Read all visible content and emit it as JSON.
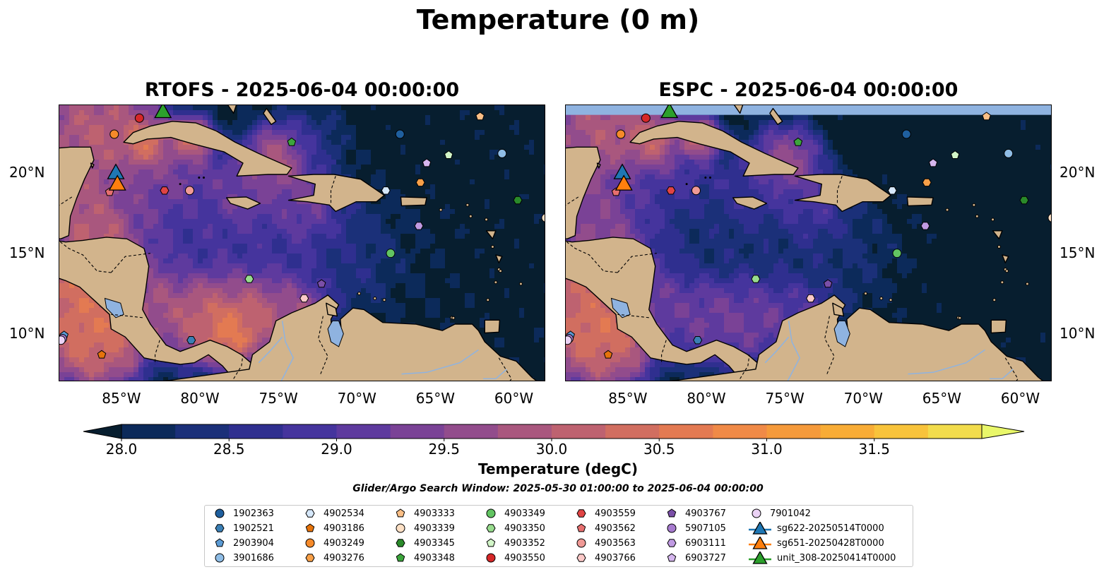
{
  "figure": {
    "title": "Temperature (0 m)",
    "search_window": "Glider/Argo Search Window: 2025-05-30 01:00:00 to 2025-06-04 00:00:00"
  },
  "panels": [
    {
      "title": "RTOFS - 2025-06-04 00:00:00",
      "model": "RTOFS"
    },
    {
      "title": "ESPC - 2025-06-04 00:00:00",
      "model": "ESPC"
    }
  ],
  "map_axes": {
    "lon_range": [
      -89,
      -58
    ],
    "lat_range": [
      7,
      24.2
    ],
    "lon_ticks": [
      "85°W",
      "80°W",
      "75°W",
      "70°W",
      "65°W",
      "60°W"
    ],
    "lat_ticks": [
      "20°N",
      "15°N",
      "10°N"
    ],
    "lon_tick_values": [
      -85,
      -80,
      -75,
      -70,
      -65,
      -60
    ],
    "lat_tick_values": [
      20,
      15,
      10
    ]
  },
  "colorbar": {
    "label": "Temperature (degC)",
    "min": 28.0,
    "max": 31.5,
    "step": 0.25,
    "extend": "both",
    "tick_labels": [
      "28.0",
      "28.5",
      "29.0",
      "29.5",
      "30.0",
      "30.5",
      "31.0",
      "31.5"
    ],
    "colormap": [
      "#071e2f",
      "#0c2a5a",
      "#1b3079",
      "#2f2f8f",
      "#45349d",
      "#5e3a9e",
      "#7a4296",
      "#924c8c",
      "#a9577e",
      "#be6270",
      "#d16e60",
      "#e37a52",
      "#f08a47",
      "#f59a3b",
      "#f8ac36",
      "#f8c33b",
      "#f2dc4c",
      "#e9f76a"
    ],
    "land_color": "#d2b48c",
    "lake_color": "#8fb3e0"
  },
  "legend": {
    "argo": [
      {
        "id": "1902363",
        "marker": "circle",
        "color": "#1f5f9e",
        "lon": -67.3,
        "lat": 22.4
      },
      {
        "id": "1902521",
        "marker": "hexagon",
        "color": "#3a7fb5",
        "lon": -80.6,
        "lat": 9.6
      },
      {
        "id": "2903904",
        "marker": "pentagon",
        "color": "#5b9bd5",
        "lon": -88.7,
        "lat": 9.9
      },
      {
        "id": "3901686",
        "marker": "circle",
        "color": "#8fbde6",
        "lon": -60.8,
        "lat": 21.2
      },
      {
        "id": "4902534",
        "marker": "hexagon",
        "color": "#d6e8fb",
        "lon": -68.2,
        "lat": 18.9
      },
      {
        "id": "4903186",
        "marker": "pentagon",
        "color": "#e6730b",
        "lon": -86.3,
        "lat": 8.7
      },
      {
        "id": "4903249",
        "marker": "circle",
        "color": "#f58a2a",
        "lon": -85.5,
        "lat": 22.4
      },
      {
        "id": "4903276",
        "marker": "hexagon",
        "color": "#f8a048",
        "lon": -66.0,
        "lat": 19.4
      },
      {
        "id": "4903333",
        "marker": "pentagon",
        "color": "#fbbf86",
        "lon": -62.2,
        "lat": 23.5
      },
      {
        "id": "4903339",
        "marker": "circle",
        "color": "#fde0c5",
        "lon": -58.0,
        "lat": 17.2
      },
      {
        "id": "4903345",
        "marker": "hexagon",
        "color": "#2a8a2a",
        "lon": -59.8,
        "lat": 18.3
      },
      {
        "id": "4903348",
        "marker": "pentagon",
        "color": "#3ca53c",
        "lon": -74.2,
        "lat": 21.9
      },
      {
        "id": "4903349",
        "marker": "circle",
        "color": "#62c462",
        "lon": -67.9,
        "lat": 15.0
      },
      {
        "id": "4903350",
        "marker": "hexagon",
        "color": "#98dc8e",
        "lon": -76.9,
        "lat": 13.4
      },
      {
        "id": "4903352",
        "marker": "pentagon",
        "color": "#d2f5c8",
        "lon": -64.2,
        "lat": 21.1
      },
      {
        "id": "4903550",
        "marker": "circle",
        "color": "#d62728",
        "lon": -83.9,
        "lat": 23.4
      },
      {
        "id": "4903559",
        "marker": "hexagon",
        "color": "#e04444",
        "lon": -82.3,
        "lat": 18.9
      },
      {
        "id": "4903562",
        "marker": "pentagon",
        "color": "#e76f6f",
        "lon": -85.8,
        "lat": 18.8
      },
      {
        "id": "4903563",
        "marker": "circle",
        "color": "#f09a96",
        "lon": -80.7,
        "lat": 18.9
      },
      {
        "id": "4903766",
        "marker": "hexagon",
        "color": "#fbc9c8",
        "lon": -73.4,
        "lat": 12.2
      },
      {
        "id": "4903767",
        "marker": "pentagon",
        "color": "#7b4fa8",
        "lon": -72.3,
        "lat": 13.1
      },
      {
        "id": "5907105",
        "marker": "circle",
        "color": "#a77bcf",
        "lon": -88.8,
        "lat": 9.7
      },
      {
        "id": "6903111",
        "marker": "hexagon",
        "color": "#c09ae2",
        "lon": -66.1,
        "lat": 16.7
      },
      {
        "id": "6903727",
        "marker": "pentagon",
        "color": "#d5b6ee",
        "lon": -65.6,
        "lat": 20.6
      },
      {
        "id": "7901042",
        "marker": "circle",
        "color": "#ebd2f5",
        "lon": -88.9,
        "lat": 9.6
      }
    ],
    "gliders": [
      {
        "id": "sg622-20250514T0000",
        "color": "#1f77b4",
        "lon": -85.4,
        "lat": 20.0
      },
      {
        "id": "sg651-20250428T0000",
        "color": "#ff7f0e",
        "lon": -85.3,
        "lat": 19.3
      },
      {
        "id": "unit_308-20250414T0000",
        "color": "#2ca02c",
        "lon": -82.4,
        "lat": 23.8
      }
    ]
  }
}
